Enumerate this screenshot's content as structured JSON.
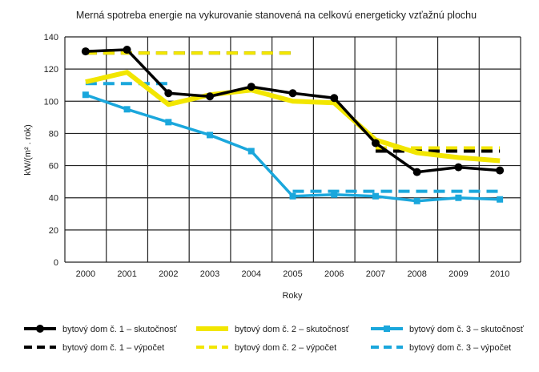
{
  "chart_data": {
    "type": "line",
    "title": "Merná spotreba energie na vykurovanie stanovená na celkovú energeticky vzťažnú plochu",
    "xlabel": "Roky",
    "ylabel": "kW/(m² . rok)",
    "ylim": [
      0,
      140
    ],
    "yticks": [
      0,
      20,
      40,
      60,
      80,
      100,
      120,
      140
    ],
    "categories": [
      "2000",
      "2001",
      "2002",
      "2003",
      "2004",
      "2005",
      "2006",
      "2007",
      "2008",
      "2009",
      "2010"
    ],
    "grid": true,
    "legend_placement": "bottom",
    "series": [
      {
        "name": "bytový dom č. 1 – skutočnosť",
        "color": "#000000",
        "style": "solid-marker",
        "values": [
          131,
          132,
          105,
          103,
          109,
          105,
          102,
          74,
          56,
          59,
          57
        ]
      },
      {
        "name": "bytový dom č. 2 – skutočnosť",
        "color": "#f2e600",
        "style": "solid",
        "values": [
          112,
          118,
          98,
          104,
          107,
          100,
          99,
          76,
          68,
          65,
          63
        ]
      },
      {
        "name": "bytový dom č. 3 – skutočnosť",
        "color": "#1aa7dc",
        "style": "solid-marker",
        "values": [
          104,
          95,
          87,
          79,
          69,
          41,
          42,
          41,
          38,
          40,
          39
        ]
      },
      {
        "name": "bytový dom č. 1 – výpočet",
        "color": "#000000",
        "style": "dashed",
        "values": [
          130,
          130,
          130,
          130,
          130,
          130,
          null,
          69,
          69,
          69,
          69
        ]
      },
      {
        "name": "bytový dom č. 2 – výpočet",
        "color": "#f2e600",
        "style": "dashed",
        "values": [
          130,
          130,
          130,
          130,
          130,
          130,
          null,
          71,
          71,
          71,
          71
        ]
      },
      {
        "name": "bytový dom č. 3 – výpočet",
        "color": "#1aa7dc",
        "style": "dashed",
        "values": [
          111,
          111,
          111,
          null,
          null,
          44,
          44,
          44,
          44,
          44,
          44
        ]
      }
    ]
  }
}
